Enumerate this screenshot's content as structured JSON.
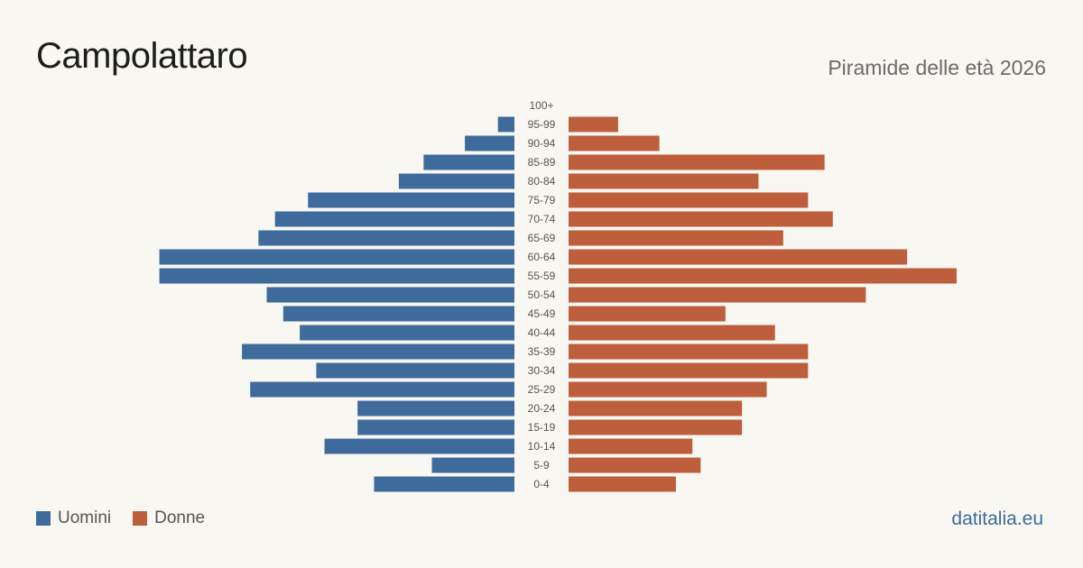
{
  "header": {
    "title": "Campolattaro",
    "subtitle": "Piramide delle età 2026"
  },
  "legend": {
    "men_label": "Uomini",
    "women_label": "Donne"
  },
  "brand": "datitalia.eu",
  "colors": {
    "men": "#3e6b9c",
    "women": "#bd5e3c",
    "background": "#f9f7f2"
  },
  "chart_data": {
    "type": "bar",
    "orientation": "horizontal-pyramid",
    "categories": [
      "100+",
      "95-99",
      "90-94",
      "85-89",
      "80-84",
      "75-79",
      "70-74",
      "65-69",
      "60-64",
      "55-59",
      "50-54",
      "45-49",
      "40-44",
      "35-39",
      "30-34",
      "25-29",
      "20-24",
      "15-19",
      "10-14",
      "5-9",
      "0-4"
    ],
    "series": [
      {
        "name": "Uomini",
        "values": [
          0,
          2,
          6,
          11,
          14,
          25,
          29,
          31,
          43,
          43,
          30,
          28,
          26,
          33,
          24,
          32,
          19,
          19,
          23,
          10,
          17
        ]
      },
      {
        "name": "Donne",
        "values": [
          0,
          6,
          11,
          31,
          23,
          29,
          32,
          26,
          41,
          47,
          36,
          19,
          25,
          29,
          29,
          24,
          21,
          21,
          15,
          16,
          13
        ]
      }
    ],
    "xlim": [
      0,
      47
    ],
    "grid": false,
    "legend_position": "bottom-left"
  }
}
